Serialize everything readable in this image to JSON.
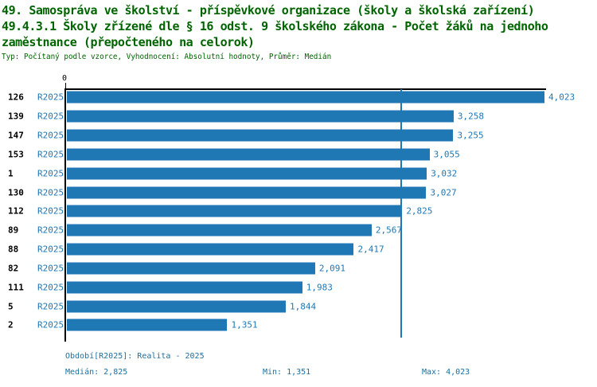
{
  "header": {
    "title_line1": "49. Samospráva ve školství - příspěvkové organizace (školy a školská zařízení)",
    "title_line2": "49.4.3.1 Školy zřízené dle § 16 odst. 9 školského zákona - Počet žáků na jednoho",
    "title_line3": "zaměstnance (přepočteného na celorok)",
    "meta_line": "Typ: Počítaný podle vzorce, Vyhodnocení: Absolutní hodnoty, Průměr: Medián"
  },
  "chart_data": {
    "type": "bar",
    "orientation": "horizontal",
    "title": "49.4.3.1 Školy zřízené dle § 16 odst. 9 školského zákona - Počet žáků na jednoho zaměstnance (přepočteného na celorok)",
    "categories": [
      "126",
      "139",
      "147",
      "153",
      "1",
      "130",
      "112",
      "89",
      "88",
      "82",
      "111",
      "5",
      "2"
    ],
    "period_label": "R2025",
    "values": [
      4.023,
      3.258,
      3.255,
      3.055,
      3.032,
      3.027,
      2.825,
      2.567,
      2.417,
      2.091,
      1.983,
      1.844,
      1.351
    ],
    "value_labels": [
      "4,023",
      "3,258",
      "3,255",
      "3,055",
      "3,032",
      "3,027",
      "2,825",
      "2,567",
      "2,417",
      "2,091",
      "1,983",
      "1,844",
      "1,351"
    ],
    "xlim": [
      0,
      4.023
    ],
    "zero_tick_label": "0",
    "median_value": 2.825,
    "grid": false,
    "legend_position": "none",
    "median_line": true
  },
  "footer": {
    "period_line": "Období[R2025]: Realita - 2025",
    "median_label": "Medián: 2,825",
    "min_label": "Min: 1,351",
    "max_label": "Max: 4,023"
  },
  "colors": {
    "title_green": "#006400",
    "bar_blue": "#1F77B4",
    "label_blue": "#1F77B4",
    "footer_blue": "#1C6F9F",
    "median_line_blue": "#1F77B4",
    "axis_black": "#000000",
    "background": "#FFFFFF"
  }
}
